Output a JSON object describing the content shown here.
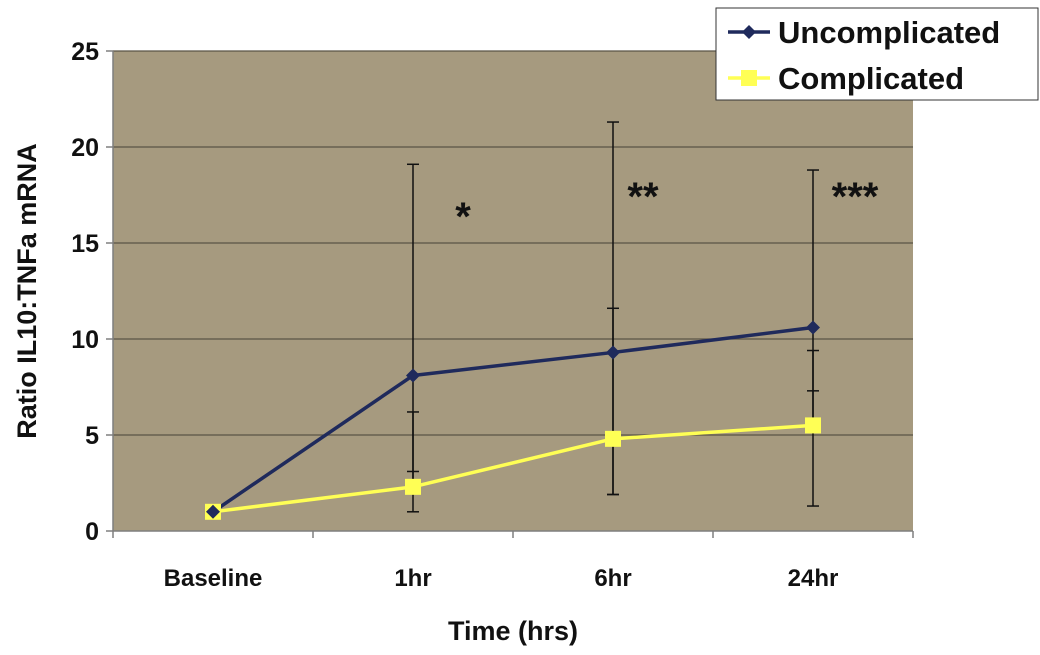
{
  "chart_data": {
    "type": "line",
    "title": "",
    "xlabel": "Time (hrs)",
    "ylabel": "Ratio IL10:TNFa mRNA",
    "categories": [
      "Baseline",
      "1hr",
      "6hr",
      "24hr"
    ],
    "ylim": [
      0,
      25
    ],
    "yticks": [
      0,
      5,
      10,
      15,
      20,
      25
    ],
    "grid": true,
    "legend_position": "top-right",
    "series": [
      {
        "name": "Uncomplicated",
        "color": "#1f2a5c",
        "marker": "diamond",
        "values": [
          1.0,
          8.1,
          9.3,
          10.6
        ],
        "error_upper": [
          1.0,
          19.1,
          21.3,
          18.8
        ],
        "error_lower": [
          1.0,
          1.0,
          1.9,
          1.3
        ]
      },
      {
        "name": "Complicated",
        "color": "#ffff55",
        "marker": "square",
        "values": [
          1.0,
          2.3,
          4.8,
          5.5
        ],
        "error_upper": [
          1.0,
          6.2,
          11.6,
          9.4
        ],
        "error_lower": [
          1.0,
          3.1,
          1.9,
          7.3
        ]
      }
    ],
    "annotations": [
      {
        "text": "*",
        "category": "1hr"
      },
      {
        "text": "**",
        "category": "6hr"
      },
      {
        "text": "***",
        "category": "24hr"
      }
    ],
    "colors": {
      "plot_background": "#a69a7f",
      "axis": "#7f7f7f",
      "text": "#111111"
    }
  }
}
